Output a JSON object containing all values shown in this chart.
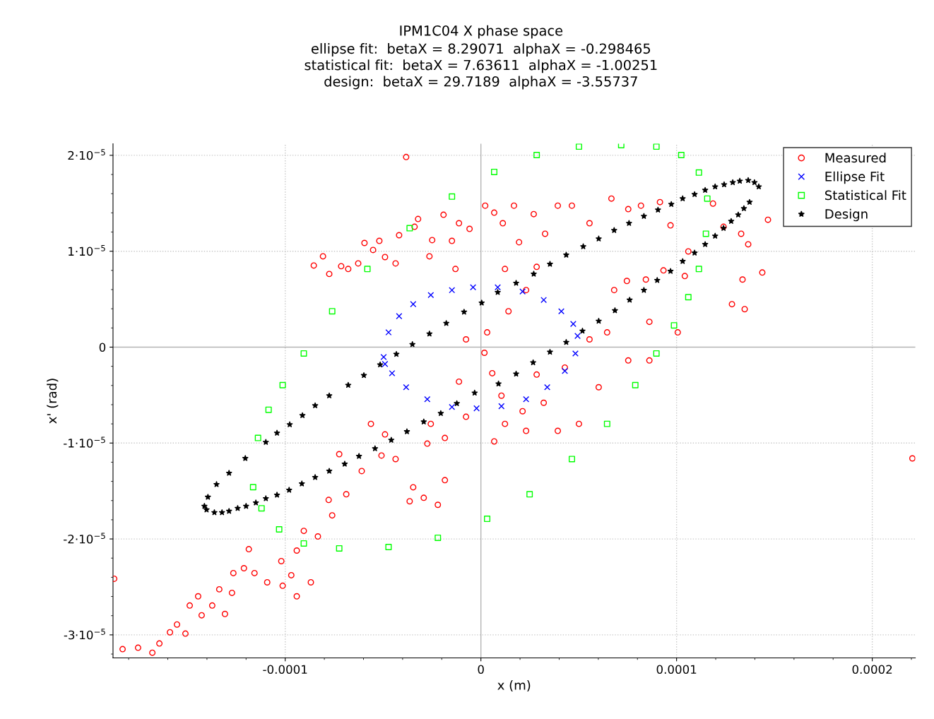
{
  "chart_data": {
    "type": "scatter",
    "title": "IPM1C04 X phase space",
    "subtitle": "ellipse fit:  betaX = 8.29071  alphaX = -0.298465\nstatistical fit:  betaX = 7.63611  alphaX = -1.00251\ndesign:  betaX = 29.7189  alphaX = -3.55737",
    "xlabel": "x (m)",
    "ylabel": "x' (rad)",
    "xlim": [
      -0.000188,
      0.000222
    ],
    "ylim": [
      -3.24e-05,
      2.12e-05
    ],
    "xticks": [
      {
        "value": -0.0001,
        "label": "-0.0001"
      },
      0,
      {
        "value": 0.0001,
        "label": "0.0001"
      },
      {
        "value": 0.0002,
        "label": "0.0002"
      }
    ],
    "yticks": [
      {
        "value": -3e-05,
        "label": "-3·10$^{−5}$"
      },
      {
        "value": -2e-05,
        "label": "-2·10$^{−5}$"
      },
      {
        "value": -1e-05,
        "label": "-1·10$^{−5}$"
      },
      0,
      {
        "value": 1e-05,
        "label": "1·10$^{−5}$"
      },
      {
        "value": 2e-05,
        "label": "2·10$^{−5}$"
      }
    ],
    "grid": true,
    "legend": "top right",
    "series": [
      {
        "name": "Measured",
        "color": "#ff0000",
        "marker": "circle",
        "x": [
          -8.54e-05,
          -7.75e-05,
          -8.07e-05,
          -7.14e-05,
          -6.78e-05,
          -6.27e-05,
          -5.95e-05,
          -5.51e-05,
          -5.19e-05,
          -4.9e-05,
          -4.36e-05,
          -4.18e-05,
          -3.39e-05,
          -3.21e-05,
          -2.63e-05,
          -2.49e-05,
          -1.91e-05,
          -1.48e-05,
          -1.3e-05,
          -1.12e-05,
          -5.8e-06,
          2.2e-06,
          6.8e-06,
          1.12e-05,
          1.69e-05,
          1.95e-05,
          2.7e-05,
          3.28e-05,
          3.93e-05,
          4.65e-05,
          5.55e-05,
          6.67e-05,
          7.53e-05,
          8.18e-05,
          9.15e-05,
          9.69e-05,
          0.000106,
          0.0001186,
          0.000124,
          0.000133,
          0.0001366,
          0.0001438,
          0.0001467,
          0.0001337,
          0.0001283,
          0.0001348,
          2.85e-05,
          2.31e-05,
          1.23e-05,
          1.41e-05,
          3.2e-06,
          -7.6e-06,
          1.8e-06,
          5.8e-06,
          -1.12e-05,
          1.05e-05,
          2.13e-05,
          3.21e-05,
          4.29e-05,
          5.55e-05,
          6.45e-05,
          6.81e-05,
          7.46e-05,
          8.43e-05,
          9.33e-05,
          0.0001042,
          8.61e-05,
          0.0001006,
          6.02e-05,
          7.53e-05,
          8.61e-05,
          2.85e-05,
          2.31e-05,
          3.93e-05,
          5.01e-05,
          1.23e-05,
          6.8e-06,
          -1.84e-05,
          -2.56e-05,
          -7.6e-06,
          -7.24e-05,
          -6.88e-05,
          -6.09e-05,
          -5.08e-05,
          -4.36e-05,
          -3.46e-05,
          -2.92e-05,
          -2.2e-05,
          -1.84e-05,
          -2.74e-05,
          -3.64e-05,
          -5.62e-05,
          -4.9e-05,
          -7.78e-05,
          -7.6e-05,
          -0.0001186,
          -0.0001211,
          -0.0001265,
          -0.0001272,
          -0.0001337,
          -0.0001445,
          -0.0001488,
          -0.0001553,
          -0.0001589,
          -0.0001643,
          -0.0001679,
          -0.0001752,
          -0.0001831,
          -0.0001874,
          -0.0001092,
          -0.0001013,
          -9.41e-05,
          -8.69e-05,
          -0.000102,
          -9.69e-05,
          -0.0001157,
          -0.0001308,
          -0.0001373,
          -0.0001427,
          -0.000151,
          -9.41e-05,
          -8.33e-05,
          -9.05e-05,
          -3.82e-05,
          0.0002205
        ],
        "values": [
          8.51e-06,
          7.63e-06,
          9.47e-06,
          8.44e-06,
          8.15e-06,
          8.73e-06,
          1.086e-05,
          1.013e-05,
          1.108e-05,
          9.39e-06,
          8.73e-06,
          1.167e-05,
          1.255e-05,
          1.336e-05,
          9.47e-06,
          1.116e-05,
          1.38e-05,
          1.108e-05,
          8.15e-06,
          1.292e-05,
          1.233e-05,
          1.475e-05,
          1.402e-05,
          1.292e-05,
          1.475e-05,
          1.094e-05,
          1.387e-05,
          1.182e-05,
          1.475e-05,
          1.475e-05,
          1.292e-05,
          1.549e-05,
          1.439e-05,
          1.475e-05,
          1.512e-05,
          1.27e-05,
          9.98e-06,
          1.497e-05,
          1.255e-05,
          1.182e-05,
          1.072e-05,
          7.78e-06,
          1.328e-05,
          7.05e-06,
          4.48e-06,
          3.96e-06,
          8.37e-06,
          5.95e-06,
          8.15e-06,
          3.74e-06,
          1.54e-06,
          8.1e-07,
          -5.9e-07,
          -2.72e-06,
          -3.6e-06,
          -5.06e-06,
          -6.68e-06,
          -5.8e-06,
          -2.13e-06,
          8.1e-07,
          1.54e-06,
          5.95e-06,
          6.9e-06,
          7.05e-06,
          8e-06,
          7.41e-06,
          2.64e-06,
          1.54e-06,
          -4.18e-06,
          -1.39e-06,
          -1.39e-06,
          -2.86e-06,
          -8.73e-06,
          -8.73e-06,
          -8e-06,
          -8e-06,
          -9.83e-06,
          -9.47e-06,
          -8e-06,
          -7.26e-06,
          -1.116e-05,
          -1.534e-05,
          -1.292e-05,
          -1.13e-05,
          -1.167e-05,
          -1.461e-05,
          -1.571e-05,
          -1.644e-05,
          -1.387e-05,
          -1.006e-05,
          -1.607e-05,
          -8e-06,
          -9.1e-06,
          -1.593e-05,
          -1.754e-05,
          -2.107e-05,
          -2.305e-05,
          -2.356e-05,
          -2.562e-05,
          -2.525e-05,
          -2.598e-05,
          -2.694e-05,
          -2.892e-05,
          -2.973e-05,
          -3.09e-05,
          -3.186e-05,
          -3.134e-05,
          -3.149e-05,
          -2.415e-05,
          -2.452e-05,
          -2.488e-05,
          -2.598e-05,
          -2.452e-05,
          -2.231e-05,
          -2.378e-05,
          -2.356e-05,
          -2.782e-05,
          -2.694e-05,
          -2.796e-05,
          -2.987e-05,
          -2.121e-05,
          -1.974e-05,
          -1.916e-05,
          1.982e-05,
          -1.16e-05
        ]
      },
      {
        "name": "Ellipse Fit",
        "color": "#0000ff",
        "marker": "cross",
        "x": [
          -4.97e-05,
          -4.72e-05,
          -4.18e-05,
          -3.46e-05,
          -2.56e-05,
          -1.48e-05,
          -4e-06,
          8.6e-06,
          2.13e-05,
          3.21e-05,
          4.11e-05,
          4.72e-05,
          4.94e-05,
          4.83e-05,
          4.29e-05,
          3.39e-05,
          2.31e-05,
          1.05e-05,
          -2.2e-06,
          -1.48e-05,
          -2.74e-05,
          -3.82e-05,
          -4.54e-05,
          -4.9e-05
        ],
        "values": [
          -1.03e-06,
          1.54e-06,
          3.23e-06,
          4.48e-06,
          5.43e-06,
          5.94e-06,
          6.24e-06,
          6.24e-06,
          5.8e-06,
          4.92e-06,
          3.74e-06,
          2.42e-06,
          1.17e-06,
          -6.6e-07,
          -2.49e-06,
          -4.18e-06,
          -5.43e-06,
          -6.16e-06,
          -6.38e-06,
          -6.24e-06,
          -5.43e-06,
          -4.18e-06,
          -2.72e-06,
          -1.76e-06
        ]
      },
      {
        "name": "Statistical Fit",
        "color": "#00ff00",
        "marker": "square",
        "x": [
          -0.0001164,
          -0.0001139,
          -0.0001085,
          -0.0001013,
          -9.05e-05,
          -7.6e-05,
          -5.8e-05,
          -3.64e-05,
          -1.48e-05,
          6.8e-06,
          2.85e-05,
          5.01e-05,
          7.17e-05,
          8.97e-05,
          0.0001024,
          0.0001114,
          0.0001157,
          0.000115,
          0.0001114,
          0.000106,
          9.87e-05,
          8.97e-05,
          7.89e-05,
          6.45e-05,
          4.65e-05,
          2.49e-05,
          3.2e-06,
          -2.2e-05,
          -4.72e-05,
          -7.24e-05,
          -9.05e-05,
          -0.0001031,
          -0.0001121
        ],
        "values": [
          -1.46e-05,
          -9.47e-06,
          -6.53e-06,
          -3.96e-06,
          -6.6e-07,
          3.74e-06,
          8.15e-06,
          1.24e-05,
          1.57e-05,
          1.827e-05,
          2.003e-05,
          2.091e-05,
          2.106e-05,
          2.091e-05,
          2.003e-05,
          1.82e-05,
          1.549e-05,
          1.182e-05,
          8.15e-06,
          5.21e-06,
          2.27e-06,
          -6.6e-07,
          -3.96e-06,
          -8e-06,
          -1.167e-05,
          -1.534e-05,
          -1.79e-05,
          -1.988e-05,
          -2.084e-05,
          -2.098e-05,
          -2.047e-05,
          -1.9e-05,
          -1.68e-05
        ]
      },
      {
        "name": "Design",
        "color": "#000000",
        "marker": "star",
        "x": [
          -0.0001413,
          -0.0001395,
          -0.0001351,
          -0.0001287,
          -0.0001204,
          -0.0001099,
          -0.0001042,
          -9.77e-05,
          -9.12e-05,
          -8.47e-05,
          -7.75e-05,
          -6.78e-05,
          -5.98e-05,
          -5.15e-05,
          -4.32e-05,
          -3.5e-05,
          -2.63e-05,
          -1.77e-05,
          -8.6e-06,
          4e-07,
          8.6e-06,
          1.8e-05,
          2.7e-05,
          3.53e-05,
          4.36e-05,
          5.23e-05,
          6.02e-05,
          6.81e-05,
          7.57e-05,
          8.33e-05,
          9.05e-05,
          9.73e-05,
          0.0001031,
          0.0001092,
          0.0001146,
          0.0001197,
          0.0001243,
          0.0001287,
          0.0001323,
          0.0001366,
          0.0001398,
          0.000142,
          0.0001373,
          0.0001344,
          0.0001315,
          0.0001279,
          0.000124,
          0.0001197,
          0.0001146,
          0.0001092,
          0.0001031,
          9.69e-05,
          9.01e-05,
          8.33e-05,
          7.6e-05,
          6.85e-05,
          6.02e-05,
          5.19e-05,
          4.36e-05,
          3.53e-05,
          2.67e-05,
          1.8e-05,
          9e-06,
          -3.2e-06,
          -1.23e-05,
          -2.05e-05,
          -2.92e-05,
          -3.78e-05,
          -4.58e-05,
          -5.41e-05,
          -6.23e-05,
          -6.96e-05,
          -7.75e-05,
          -8.47e-05,
          -9.15e-05,
          -9.8e-05,
          -0.0001042,
          -0.0001099,
          -0.000115,
          -0.00012,
          -0.0001243,
          -0.0001287,
          -0.0001323,
          -0.0001362,
          -0.0001402
        ],
        "values": [
          -1.658e-05,
          -1.563e-05,
          -1.431e-05,
          -1.313e-05,
          -1.159e-05,
          -9.91e-06,
          -8.95e-06,
          -8.07e-06,
          -7.12e-06,
          -6.09e-06,
          -5.06e-06,
          -3.96e-06,
          -2.94e-06,
          -1.83e-06,
          -7.3e-07,
          2.9e-07,
          1.39e-06,
          2.49e-06,
          3.67e-06,
          4.62e-06,
          5.72e-06,
          6.68e-06,
          7.63e-06,
          8.66e-06,
          9.61e-06,
          1.049e-05,
          1.13e-05,
          1.218e-05,
          1.292e-05,
          1.365e-05,
          1.431e-05,
          1.49e-05,
          1.549e-05,
          1.593e-05,
          1.637e-05,
          1.673e-05,
          1.695e-05,
          1.717e-05,
          1.732e-05,
          1.739e-05,
          1.717e-05,
          1.673e-05,
          1.512e-05,
          1.446e-05,
          1.38e-05,
          1.313e-05,
          1.24e-05,
          1.159e-05,
          1.072e-05,
          9.83e-06,
          8.95e-06,
          7.92e-06,
          6.97e-06,
          5.94e-06,
          4.92e-06,
          3.82e-06,
          2.72e-06,
          1.69e-06,
          5.1e-07,
          -5.1e-07,
          -1.61e-06,
          -2.79e-06,
          -3.82e-06,
          -4.77e-06,
          -5.87e-06,
          -6.9e-06,
          -7.78e-06,
          -8.8e-06,
          -9.69e-06,
          -1.057e-05,
          -1.137e-05,
          -1.218e-05,
          -1.292e-05,
          -1.357e-05,
          -1.424e-05,
          -1.49e-05,
          -1.541e-05,
          -1.578e-05,
          -1.622e-05,
          -1.658e-05,
          -1.68e-05,
          -1.71e-05,
          -1.724e-05,
          -1.724e-05,
          -1.695e-05
        ]
      }
    ]
  }
}
